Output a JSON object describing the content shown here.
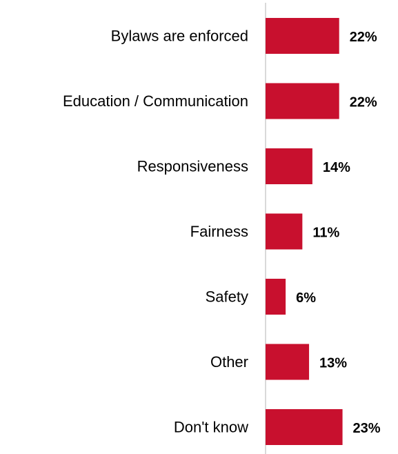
{
  "chart_data": {
    "type": "bar",
    "orientation": "horizontal",
    "categories": [
      "Bylaws are enforced",
      "Education / Communication",
      "Responsiveness",
      "Fairness",
      "Safety",
      "Other",
      "Don't know"
    ],
    "values": [
      22,
      22,
      14,
      11,
      6,
      13,
      23
    ],
    "value_labels": [
      "22%",
      "22%",
      "14%",
      "11%",
      "6%",
      "13%",
      "23%"
    ],
    "unit": "%",
    "bar_color": "#C8102E",
    "axis_line_color": "#D9D9D9",
    "grid": false,
    "legend": "none"
  }
}
